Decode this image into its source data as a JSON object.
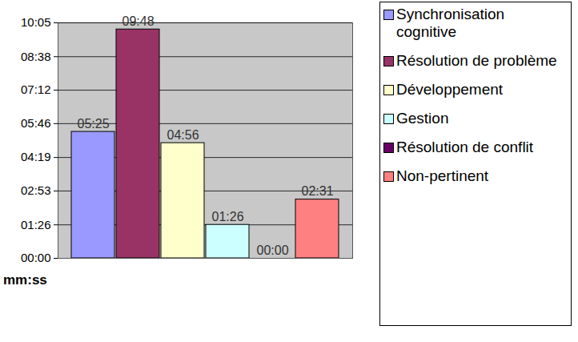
{
  "chart_data": {
    "type": "bar",
    "categories": [
      "Synchronisation cognitive",
      "Résolution de problème",
      "Développement",
      "Gestion",
      "Résolution de conflit",
      "Non-pertinent"
    ],
    "values": [
      325,
      588,
      296,
      86,
      0,
      151
    ],
    "value_labels": [
      "05:25",
      "09:48",
      "04:56",
      "01:26",
      "00:00",
      "02:31"
    ],
    "colors": [
      "#9999ff",
      "#993366",
      "#ffffcc",
      "#ccffff",
      "#660066",
      "#ff8080"
    ],
    "ylabel": "mm:ss",
    "ylim": [
      0,
      605
    ],
    "yticks": [
      {
        "value": 0,
        "label": "00:00"
      },
      {
        "value": 86,
        "label": "01:26"
      },
      {
        "value": 173,
        "label": "02:53"
      },
      {
        "value": 259,
        "label": "04:19"
      },
      {
        "value": 346,
        "label": "05:46"
      },
      {
        "value": 432,
        "label": "07:12"
      },
      {
        "value": 518,
        "label": "08:38"
      },
      {
        "value": 605,
        "label": "10:05"
      }
    ],
    "grid": true,
    "legend": "right",
    "data_labels": true,
    "tick_labels": "y"
  }
}
